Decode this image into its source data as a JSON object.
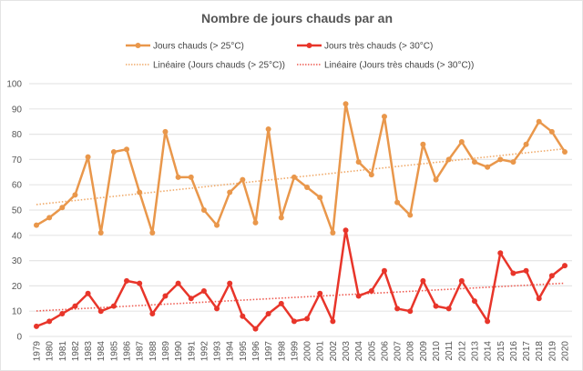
{
  "chart_data": {
    "type": "line",
    "title": "Nombre de jours chauds par an",
    "xlabel": "",
    "ylabel": "",
    "ylim": [
      0,
      100
    ],
    "yticks": [
      "0",
      "10",
      "20",
      "30",
      "40",
      "50",
      "60",
      "70",
      "80",
      "90",
      "100"
    ],
    "grid": true,
    "legend_placement": "top",
    "x": [
      1979,
      1980,
      1981,
      1982,
      1983,
      1984,
      1985,
      1986,
      1987,
      1988,
      1989,
      1990,
      1991,
      1992,
      1993,
      1994,
      1995,
      1996,
      1997,
      1998,
      1999,
      2000,
      2001,
      2002,
      2003,
      2004,
      2005,
      2006,
      2007,
      2008,
      2009,
      2010,
      2011,
      2012,
      2013,
      2014,
      2015,
      2016,
      2017,
      2018,
      2019,
      2020
    ],
    "series": [
      {
        "name": "Jours chauds (> 25°C)",
        "color": "#E9974B",
        "values": [
          44,
          47,
          51,
          56,
          71,
          41,
          73,
          74,
          57,
          41,
          81,
          63,
          63,
          50,
          44,
          57,
          62,
          45,
          82,
          47,
          63,
          59,
          55,
          41,
          92,
          69,
          64,
          87,
          53,
          48,
          76,
          62,
          70,
          77,
          69,
          67,
          70,
          69,
          76,
          85,
          81,
          73
        ]
      },
      {
        "name": "Jours très chauds (> 30°C)",
        "color": "#E8352A",
        "values": [
          4,
          6,
          9,
          12,
          17,
          10,
          12,
          22,
          21,
          9,
          16,
          21,
          15,
          18,
          11,
          21,
          8,
          3,
          9,
          13,
          6,
          7,
          17,
          6,
          42,
          16,
          18,
          26,
          11,
          10,
          22,
          12,
          11,
          22,
          14,
          6,
          33,
          25,
          26,
          15,
          24,
          28
        ]
      }
    ],
    "trendlines": [
      {
        "name": "Linéaire (Jours chauds (> 25°C))",
        "type": "linear",
        "of_series": 0,
        "color": "#F0AA6A"
      },
      {
        "name": "Linéaire (Jours très chauds (> 30°C))",
        "type": "linear",
        "of_series": 1,
        "color": "#EE5A50"
      }
    ]
  }
}
